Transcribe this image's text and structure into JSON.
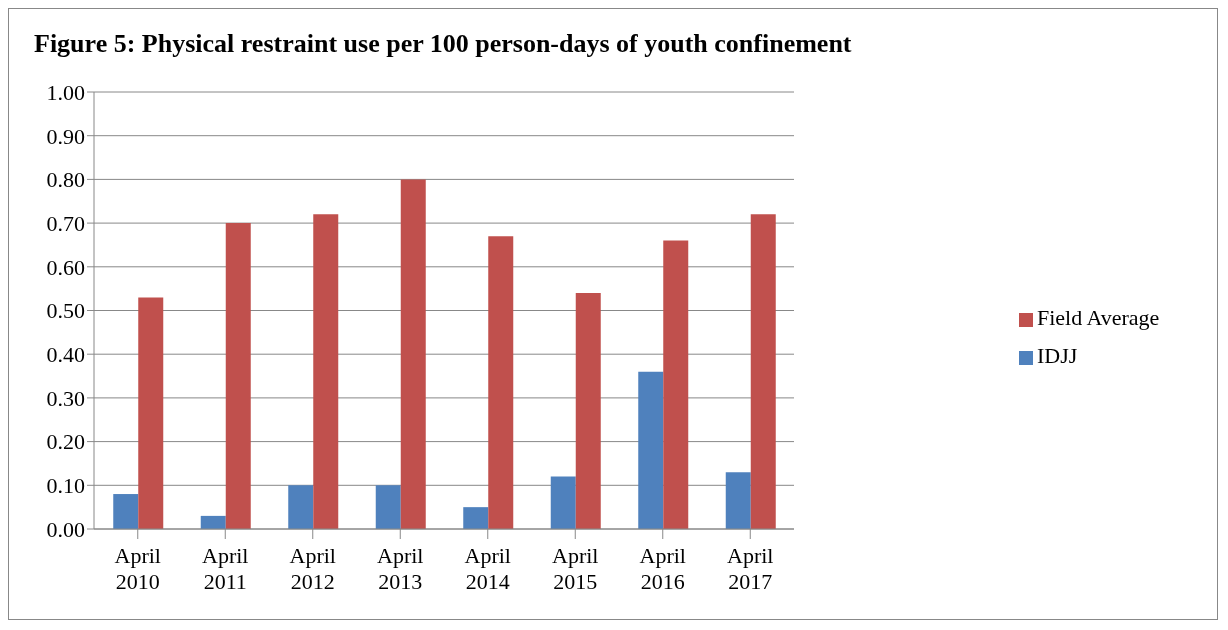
{
  "chart_data": {
    "type": "bar",
    "title": "Figure 5: Physical restraint use per 100 person-days of youth confinement",
    "categories": [
      "April 2010",
      "April 2011",
      "April 2012",
      "April 2013",
      "April 2014",
      "April 2015",
      "April 2016",
      "April 2017"
    ],
    "series": [
      {
        "name": "IDJJ",
        "color": "#4f81bd",
        "values": [
          0.08,
          0.03,
          0.1,
          0.1,
          0.05,
          0.12,
          0.36,
          0.13
        ]
      },
      {
        "name": "Field Average",
        "color": "#c0504d",
        "values": [
          0.53,
          0.7,
          0.72,
          0.8,
          0.67,
          0.54,
          0.66,
          0.72
        ]
      }
    ],
    "ylim": [
      0,
      1
    ],
    "yticks": [
      {
        "value": 0,
        "label": "0.00"
      },
      {
        "value": 0.1,
        "label": "0.10"
      },
      {
        "value": 0.2,
        "label": "0.20"
      },
      {
        "value": 0.3,
        "label": "0.30"
      },
      {
        "value": 0.4,
        "label": "0.40"
      },
      {
        "value": 0.5,
        "label": "0.50"
      },
      {
        "value": 0.6,
        "label": "0.60"
      },
      {
        "value": 0.7,
        "label": "0.70"
      },
      {
        "value": 0.8,
        "label": "0.80"
      },
      {
        "value": 0.9,
        "label": "0.90"
      },
      {
        "value": 1,
        "label": "1.00"
      }
    ],
    "grid": "y",
    "legend": "right"
  }
}
